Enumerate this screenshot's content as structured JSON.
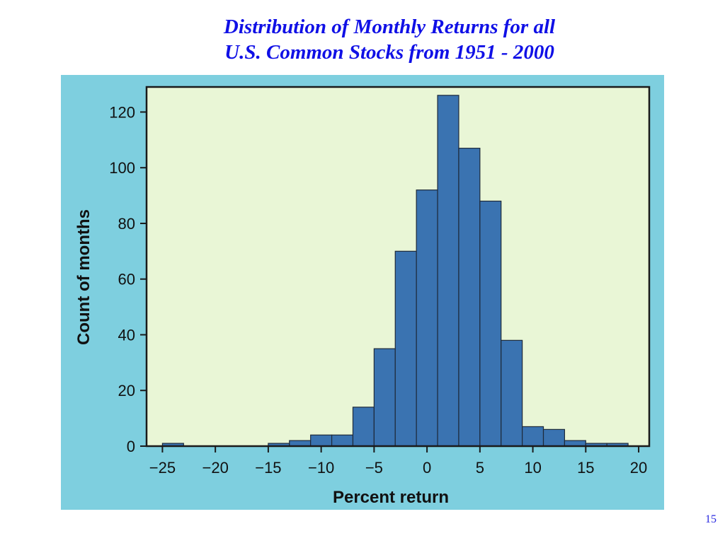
{
  "slide": {
    "title_line1": "Distribution of Monthly Returns for all",
    "title_line2": "U.S. Common Stocks from 1951 - 2000",
    "page_number": "15"
  },
  "colors": {
    "panel_bg": "#7ecfdf",
    "plot_bg": "#e9f6d6",
    "bar_fill": "#3a73b1",
    "bar_stroke": "#1e2a3a",
    "title": "#1010e6"
  },
  "chart_data": {
    "type": "bar",
    "title": "",
    "xlabel": "Percent return",
    "ylabel": "Count of months",
    "xlim": [
      -26.5,
      21
    ],
    "ylim": [
      0,
      129
    ],
    "xticks": [
      -25,
      -20,
      -15,
      -10,
      -5,
      0,
      5,
      10,
      15,
      20
    ],
    "xtick_labels": [
      "−25",
      "−20",
      "−15",
      "−10",
      "−5",
      "0",
      "5",
      "10",
      "15",
      "20"
    ],
    "yticks": [
      0,
      20,
      40,
      60,
      80,
      100,
      120
    ],
    "ytick_labels": [
      "0",
      "20",
      "40",
      "60",
      "80",
      "100",
      "120"
    ],
    "bin_width": 2,
    "bins": [
      {
        "start": -25,
        "count": 1
      },
      {
        "start": -23,
        "count": 0
      },
      {
        "start": -21,
        "count": 0
      },
      {
        "start": -19,
        "count": 0
      },
      {
        "start": -17,
        "count": 0
      },
      {
        "start": -15,
        "count": 1
      },
      {
        "start": -13,
        "count": 2
      },
      {
        "start": -11,
        "count": 4
      },
      {
        "start": -9,
        "count": 4
      },
      {
        "start": -7,
        "count": 14
      },
      {
        "start": -5,
        "count": 35
      },
      {
        "start": -3,
        "count": 70
      },
      {
        "start": -1,
        "count": 92
      },
      {
        "start": 1,
        "count": 126
      },
      {
        "start": 3,
        "count": 107
      },
      {
        "start": 5,
        "count": 88
      },
      {
        "start": 7,
        "count": 38
      },
      {
        "start": 9,
        "count": 7
      },
      {
        "start": 11,
        "count": 6
      },
      {
        "start": 13,
        "count": 2
      },
      {
        "start": 15,
        "count": 1
      },
      {
        "start": 17,
        "count": 1
      }
    ],
    "grid": false,
    "legend": "none"
  }
}
